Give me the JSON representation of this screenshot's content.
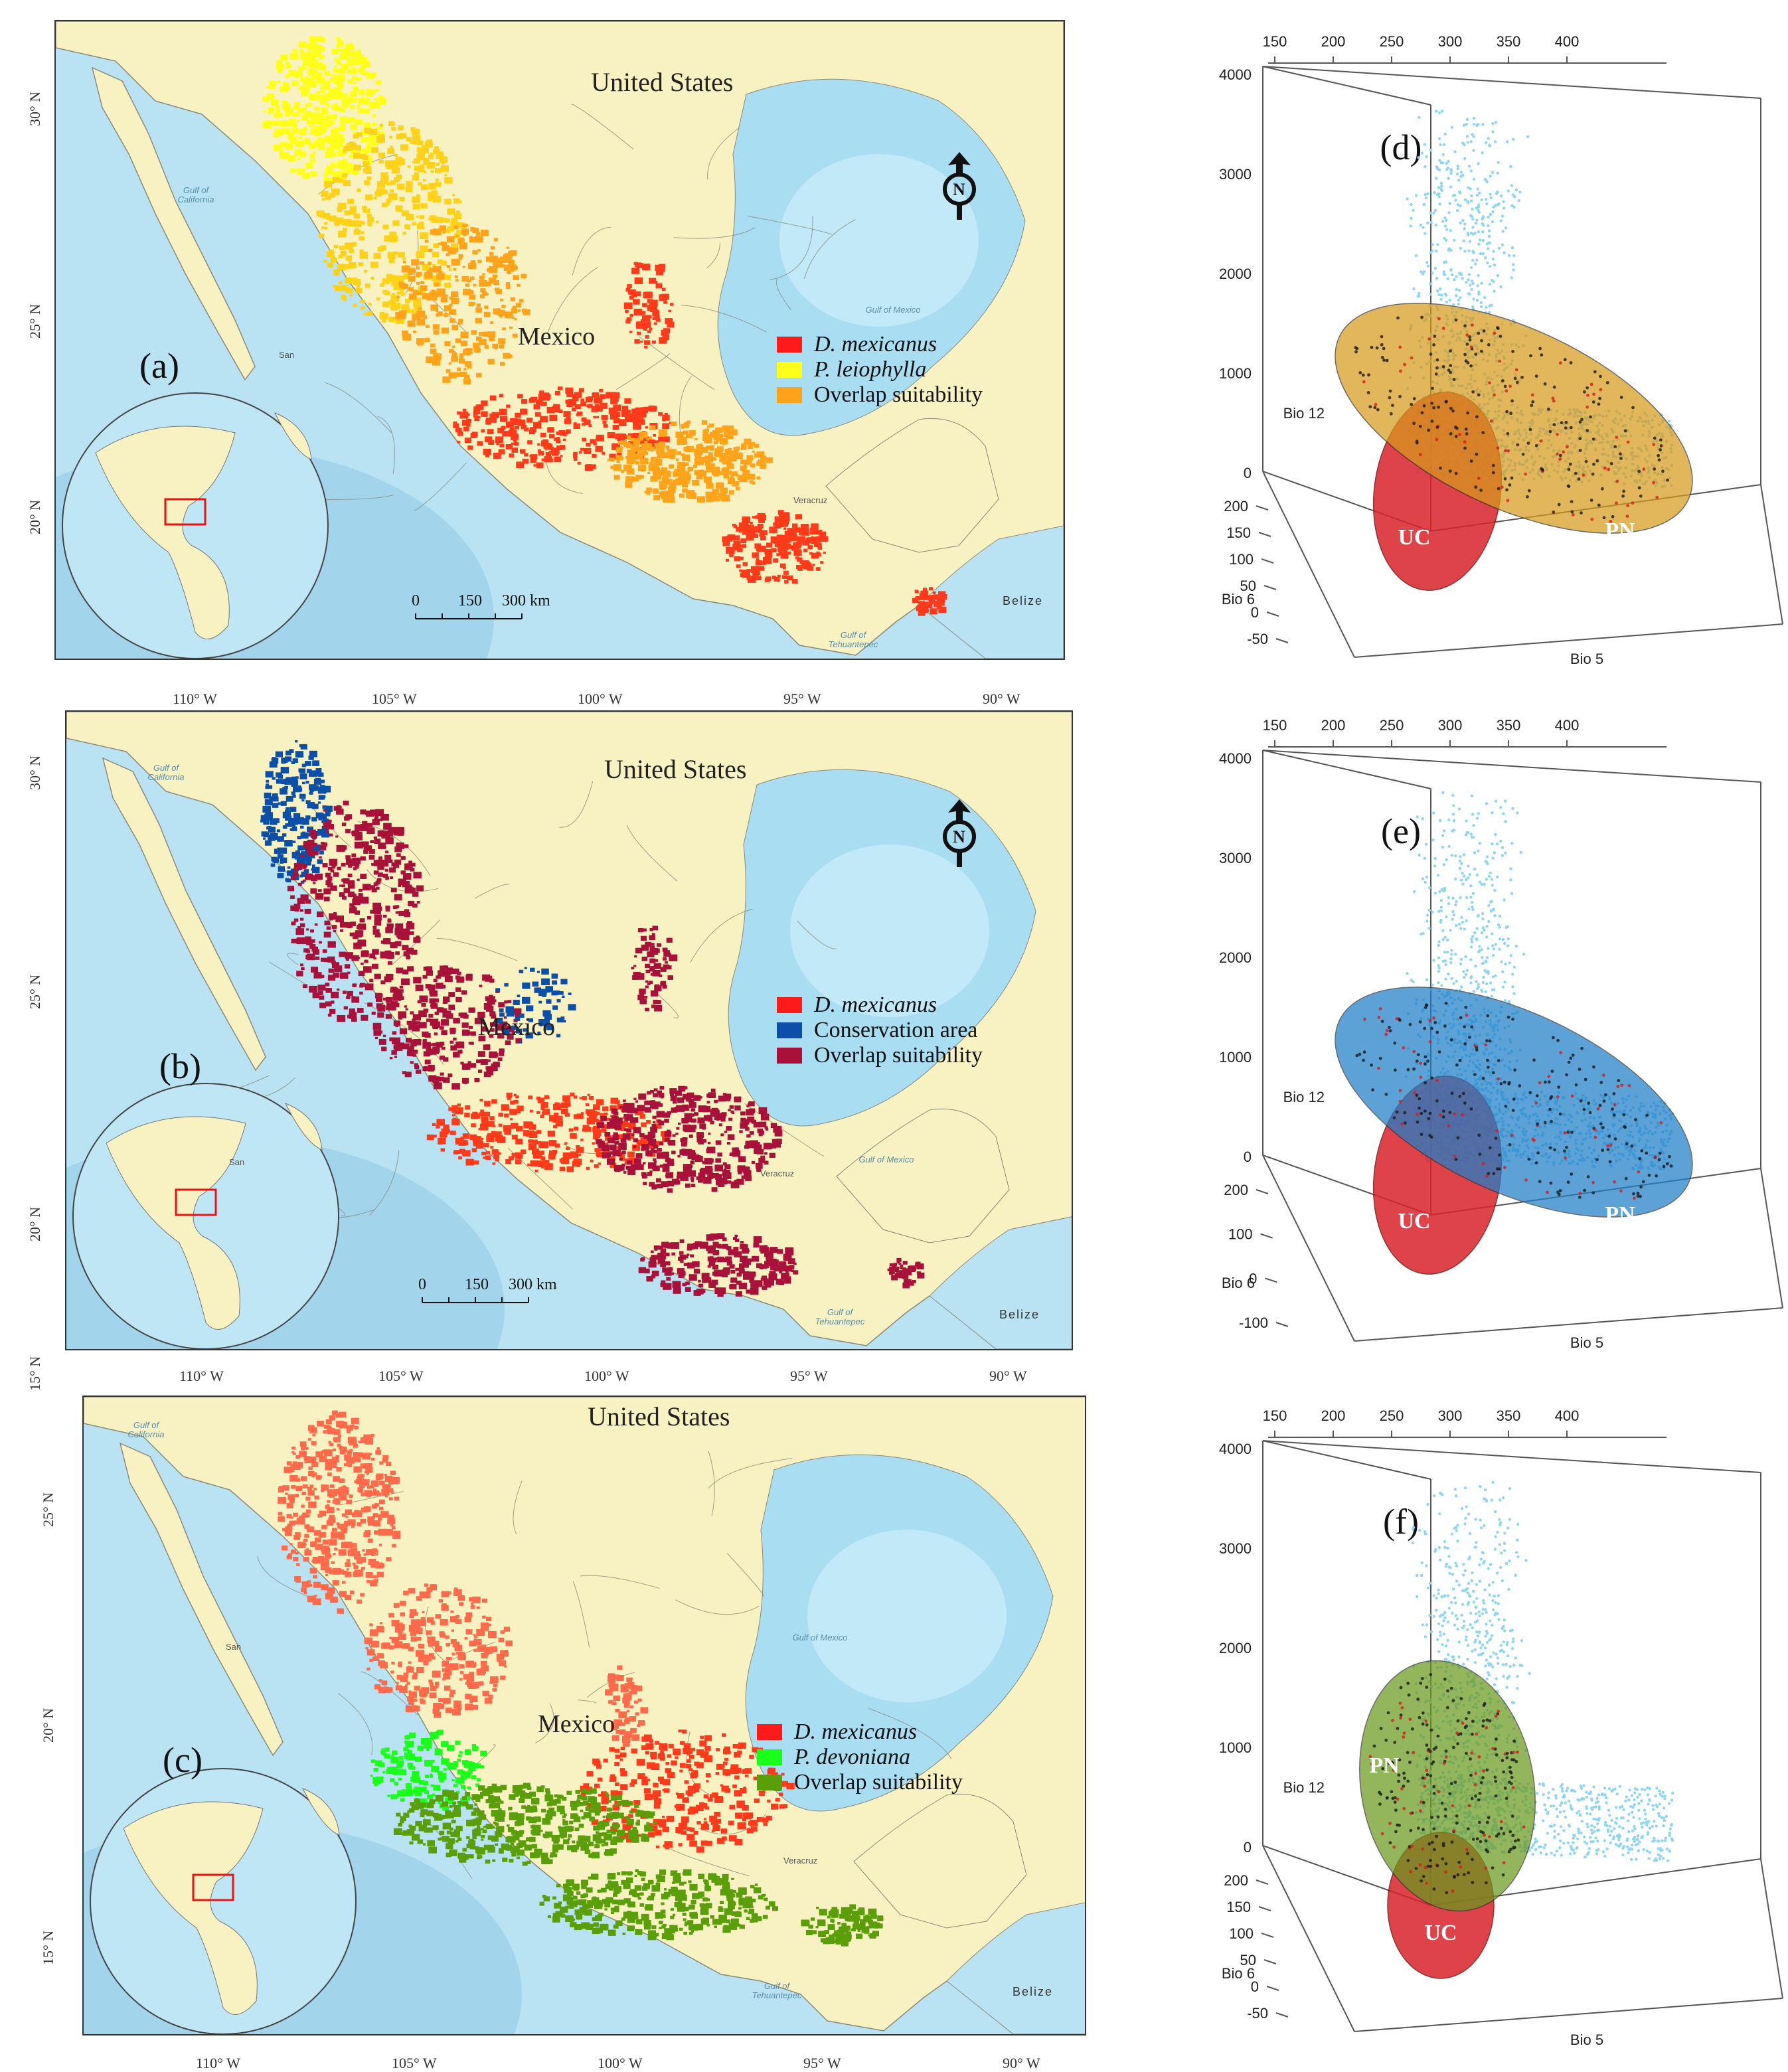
{
  "maps": [
    {
      "id": "a",
      "panel_label": "(a)",
      "country_label": "United States",
      "mexico_label": "Mexico",
      "lat_ticks": [
        "30° N",
        "25° N",
        "20° N"
      ],
      "lon_ticks": [
        "110° W",
        "105° W",
        "100° W",
        "95° W",
        "90° W"
      ],
      "water_labels": [
        "Gulf of California",
        "Gulf of Mexico",
        "Gulf of Tehuantepec"
      ],
      "city_labels": [
        "San",
        "Veracruz"
      ],
      "belize_label": "Belize",
      "scale": {
        "ticks": [
          "0",
          "150",
          "300 km"
        ]
      },
      "north_label": "N",
      "legend": [
        {
          "label": "D. mexicanus",
          "italic": true,
          "color": "#ff1a1a"
        },
        {
          "label": "P. leiophylla",
          "italic": true,
          "color": "#ffff1a"
        },
        {
          "label": "Overlap suitability",
          "italic": false,
          "color": "#ffa31a"
        }
      ]
    },
    {
      "id": "b",
      "panel_label": "(b)",
      "country_label": "United States",
      "mexico_label": "Mexico",
      "lat_ticks": [
        "30° N",
        "25° N",
        "20° N",
        "15° N"
      ],
      "lon_ticks": [
        "110° W",
        "105° W",
        "100° W",
        "95° W",
        "90° W"
      ],
      "water_labels": [
        "Gulf of California",
        "Gulf of Mexico",
        "Gulf of Tehuantepec"
      ],
      "city_labels": [
        "San",
        "Veracruz"
      ],
      "belize_label": "Belize",
      "scale": {
        "ticks": [
          "0",
          "150",
          "300 km"
        ]
      },
      "north_label": "N",
      "legend": [
        {
          "label": "D. mexicanus",
          "italic": true,
          "color": "#ff1a1a"
        },
        {
          "label": "Conservation area",
          "italic": false,
          "color": "#0b4fa8"
        },
        {
          "label": "Overlap suitability",
          "italic": false,
          "color": "#a8123a"
        }
      ]
    },
    {
      "id": "c",
      "panel_label": "(c)",
      "country_label": "United States",
      "mexico_label": "Mexico",
      "lat_ticks": [
        "25° N",
        "20° N",
        "15° N"
      ],
      "lon_ticks": [
        "110° W",
        "105° W",
        "100° W",
        "95° W",
        "90° W"
      ],
      "water_labels": [
        "Gulf of California",
        "Gulf of Mexico",
        "Gulf of Tehuantepec"
      ],
      "city_labels": [
        "San",
        "Veracruz"
      ],
      "belize_label": "Belize",
      "legend": [
        {
          "label": "D. mexicanus",
          "italic": true,
          "color": "#ff1a1a"
        },
        {
          "label": "P. devoniana",
          "italic": true,
          "color": "#1aff1a"
        },
        {
          "label": "Overlap suitability",
          "italic": false,
          "color": "#5a9e0a"
        }
      ]
    }
  ],
  "plots": [
    {
      "id": "d",
      "panel_label": "(d)",
      "bio5_ticks": [
        "150",
        "200",
        "250",
        "300",
        "350",
        "400"
      ],
      "bio12_ticks": [
        "4000",
        "3000",
        "2000",
        "1000",
        "0"
      ],
      "bio6_ticks": [
        "200",
        "150",
        "100",
        "50",
        "0",
        "-50"
      ],
      "axis_labels": {
        "x": "Bio 5",
        "y": "Bio 12",
        "z": "Bio 6"
      },
      "ellipses": [
        {
          "label": "UC",
          "color": "#d8232a"
        },
        {
          "label": "PN",
          "color": "#d79a1c"
        }
      ]
    },
    {
      "id": "e",
      "panel_label": "(e)",
      "bio5_ticks": [
        "150",
        "200",
        "250",
        "300",
        "350",
        "400"
      ],
      "bio12_ticks": [
        "4000",
        "3000",
        "2000",
        "1000",
        "0"
      ],
      "bio6_ticks": [
        "200",
        "100",
        "0",
        "-100"
      ],
      "axis_labels": {
        "x": "Bio 5",
        "y": "Bio 12",
        "z": "Bio 6"
      },
      "ellipses": [
        {
          "label": "UC",
          "color": "#d8232a"
        },
        {
          "label": "PN",
          "color": "#1e7fc8"
        }
      ]
    },
    {
      "id": "f",
      "panel_label": "(f)",
      "bio5_ticks": [
        "150",
        "200",
        "250",
        "300",
        "350",
        "400"
      ],
      "bio12_ticks": [
        "4000",
        "3000",
        "2000",
        "1000",
        "0"
      ],
      "bio6_ticks": [
        "200",
        "150",
        "100",
        "50",
        "0",
        "-50"
      ],
      "axis_labels": {
        "x": "Bio 5",
        "y": "Bio 12",
        "z": "Bio 6"
      },
      "ellipses": [
        {
          "label": "UC",
          "color": "#d8232a"
        },
        {
          "label": "PN",
          "color": "#6a9a1e"
        }
      ]
    }
  ],
  "colors": {
    "ocean": "#b9e3f3",
    "ocean_deep": "#8cc8e6",
    "land": "#f8f1c2",
    "border": "#8a8a7a",
    "points": "#8fd6f5"
  }
}
